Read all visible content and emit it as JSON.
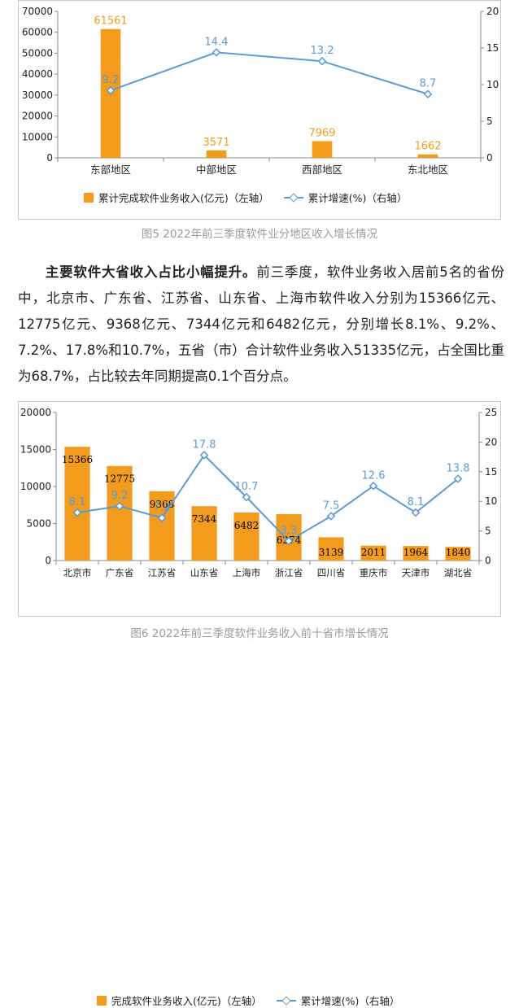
{
  "figure1": {
    "caption": "图5  2022年前三季度软件业分地区收入增长情况",
    "legend": {
      "bar": "累计完成软件业务收入(亿元)（左轴）",
      "line": "累计增速(%)（右轴）"
    }
  },
  "paragraph": {
    "lead": "主要软件大省收入占比小幅提升。",
    "body": "前三季度，软件业务收入居前5名的省份中，北京市、广东省、江苏省、山东省、上海市软件收入分别为15366亿元、12775亿元、9368亿元、7344亿元和6482亿元，分别增长8.1%、9.2%、7.2%、17.8%和10.7%，五省（市）合计软件业务收入51335亿元，占全国比重为68.7%，占比较去年同期提高0.1个百分点。"
  },
  "figure2": {
    "caption": "图6  2022年前三季度软件业务收入前十省市增长情况",
    "legend": {
      "bar": "完成软件业务收入(亿元)（左轴）",
      "line": "累计增速(%)（右轴）"
    }
  },
  "colors": {
    "bar": "#f39b1c",
    "line": "#5b9bd5",
    "bar_label_1": "#f39b1c",
    "bar_label_2": "#000000"
  },
  "chart_data": [
    {
      "type": "bar",
      "categories": [
        "东部地区",
        "中部地区",
        "西部地区",
        "东北地区"
      ],
      "series": [
        {
          "name": "累计完成软件业务收入(亿元)（左轴）",
          "type": "bar",
          "axis": "left",
          "values": [
            61561,
            3571,
            7969,
            1662
          ]
        },
        {
          "name": "累计增速(%)（右轴）",
          "type": "line",
          "axis": "right",
          "values": [
            9.2,
            14.4,
            13.2,
            8.7
          ]
        }
      ],
      "ylim_left": [
        0,
        70000
      ],
      "yticks_left": [
        0,
        10000,
        20000,
        30000,
        40000,
        50000,
        60000,
        70000
      ],
      "ylim_right": [
        0,
        20
      ],
      "yticks_right": [
        0,
        5,
        10,
        15,
        20
      ],
      "grid": false,
      "legend": "bottom"
    },
    {
      "type": "bar",
      "categories": [
        "北京市",
        "广东省",
        "江苏省",
        "山东省",
        "上海市",
        "浙江省",
        "四川省",
        "重庆市",
        "天津市",
        "湖北省"
      ],
      "series": [
        {
          "name": "完成软件业务收入(亿元)（左轴）",
          "type": "bar",
          "axis": "left",
          "values": [
            15366,
            12775,
            9368,
            7344,
            6482,
            6274,
            3139,
            2011,
            1964,
            1840
          ]
        },
        {
          "name": "累计增速(%)（右轴）",
          "type": "line",
          "axis": "right",
          "values": [
            8.1,
            9.2,
            7.2,
            17.8,
            10.7,
            3.3,
            7.5,
            12.6,
            8.1,
            13.8
          ]
        }
      ],
      "ylim_left": [
        0,
        20000
      ],
      "yticks_left": [
        0,
        5000,
        10000,
        15000,
        20000
      ],
      "ylim_right": [
        0,
        25
      ],
      "yticks_right": [
        0,
        5,
        10,
        15,
        20,
        25
      ],
      "grid": false,
      "legend": "bottom"
    }
  ]
}
